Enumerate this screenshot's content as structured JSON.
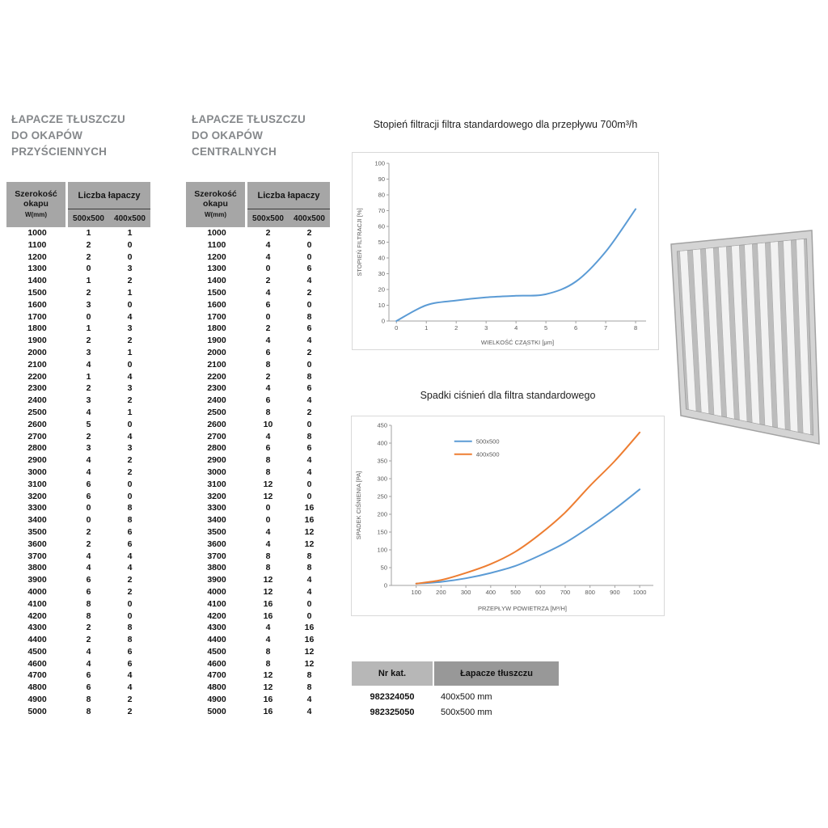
{
  "titles": {
    "wall": [
      "ŁAPACZE TŁUSZCZU",
      "DO OKAPÓW",
      "PRZYŚCIENNYCH"
    ],
    "central": [
      "ŁAPACZE TŁUSZCZU",
      "DO OKAPÓW",
      "CENTRALNYCH"
    ]
  },
  "spec_header": {
    "col1": [
      "Szerokość",
      "okapu"
    ],
    "col1_sub": "W(mm)",
    "group": "Liczba łapaczy",
    "sub": [
      "500x500",
      "400x500"
    ]
  },
  "tables": {
    "wall_rows": [
      [
        1000,
        1,
        1
      ],
      [
        1100,
        2,
        0
      ],
      [
        1200,
        2,
        0
      ],
      [
        1300,
        0,
        3
      ],
      [
        1400,
        1,
        2
      ],
      [
        1500,
        2,
        1
      ],
      [
        1600,
        3,
        0
      ],
      [
        1700,
        0,
        4
      ],
      [
        1800,
        1,
        3
      ],
      [
        1900,
        2,
        2
      ],
      [
        2000,
        3,
        1
      ],
      [
        2100,
        4,
        0
      ],
      [
        2200,
        1,
        4
      ],
      [
        2300,
        2,
        3
      ],
      [
        2400,
        3,
        2
      ],
      [
        2500,
        4,
        1
      ],
      [
        2600,
        5,
        0
      ],
      [
        2700,
        2,
        4
      ],
      [
        2800,
        3,
        3
      ],
      [
        2900,
        4,
        2
      ],
      [
        3000,
        4,
        2
      ],
      [
        3100,
        6,
        0
      ],
      [
        3200,
        6,
        0
      ],
      [
        3300,
        0,
        8
      ],
      [
        3400,
        0,
        8
      ],
      [
        3500,
        2,
        6
      ],
      [
        3600,
        2,
        6
      ],
      [
        3700,
        4,
        4
      ],
      [
        3800,
        4,
        4
      ],
      [
        3900,
        6,
        2
      ],
      [
        4000,
        6,
        2
      ],
      [
        4100,
        8,
        0
      ],
      [
        4200,
        8,
        0
      ],
      [
        4300,
        2,
        8
      ],
      [
        4400,
        2,
        8
      ],
      [
        4500,
        4,
        6
      ],
      [
        4600,
        4,
        6
      ],
      [
        4700,
        6,
        4
      ],
      [
        4800,
        6,
        4
      ],
      [
        4900,
        8,
        2
      ],
      [
        5000,
        8,
        2
      ]
    ],
    "central_rows": [
      [
        1000,
        2,
        2
      ],
      [
        1100,
        4,
        0
      ],
      [
        1200,
        4,
        0
      ],
      [
        1300,
        0,
        6
      ],
      [
        1400,
        2,
        4
      ],
      [
        1500,
        4,
        2
      ],
      [
        1600,
        6,
        0
      ],
      [
        1700,
        0,
        8
      ],
      [
        1800,
        2,
        6
      ],
      [
        1900,
        4,
        4
      ],
      [
        2000,
        6,
        2
      ],
      [
        2100,
        8,
        0
      ],
      [
        2200,
        2,
        8
      ],
      [
        2300,
        4,
        6
      ],
      [
        2400,
        6,
        4
      ],
      [
        2500,
        8,
        2
      ],
      [
        2600,
        10,
        0
      ],
      [
        2700,
        4,
        8
      ],
      [
        2800,
        6,
        6
      ],
      [
        2900,
        8,
        4
      ],
      [
        3000,
        8,
        4
      ],
      [
        3100,
        12,
        0
      ],
      [
        3200,
        12,
        0
      ],
      [
        3300,
        0,
        16
      ],
      [
        3400,
        0,
        16
      ],
      [
        3500,
        4,
        12
      ],
      [
        3600,
        4,
        12
      ],
      [
        3700,
        8,
        8
      ],
      [
        3800,
        8,
        8
      ],
      [
        3900,
        12,
        4
      ],
      [
        4000,
        12,
        4
      ],
      [
        4100,
        16,
        0
      ],
      [
        4200,
        16,
        0
      ],
      [
        4300,
        4,
        16
      ],
      [
        4400,
        4,
        16
      ],
      [
        4500,
        8,
        12
      ],
      [
        4600,
        8,
        12
      ],
      [
        4700,
        12,
        8
      ],
      [
        4800,
        12,
        8
      ],
      [
        4900,
        16,
        4
      ],
      [
        5000,
        16,
        4
      ]
    ]
  },
  "chart_data": [
    {
      "type": "line",
      "title": "Stopień filtracji filtra standardowego dla przepływu 700m³/h",
      "xlabel": "WIELKOŚĆ CZĄSTKI [μm]",
      "ylabel": "STOPIEŃ FILTRACJI [%]",
      "x": [
        0,
        1,
        2,
        3,
        4,
        5,
        6,
        7,
        8
      ],
      "values": [
        0,
        10,
        13,
        15,
        16,
        17,
        25,
        44,
        71
      ],
      "line_color": "#5b9bd5",
      "xlim": [
        0,
        8
      ],
      "ylim": [
        0,
        100
      ],
      "yticks": [
        0,
        10,
        20,
        30,
        40,
        50,
        60,
        70,
        80,
        90,
        100
      ],
      "grid": false,
      "legend": null
    },
    {
      "type": "line",
      "title": "Spadki ciśnień dla filtra standardowego",
      "xlabel": "PRZEPŁYW POWIETRZA [M³/H]",
      "ylabel": "SPADEK CIŚNIENIA [PA]",
      "x": [
        100,
        200,
        300,
        400,
        500,
        600,
        700,
        800,
        900,
        1000
      ],
      "series": [
        {
          "name": "500x500",
          "color": "#5b9bd5",
          "values": [
            5,
            10,
            20,
            35,
            55,
            85,
            120,
            165,
            215,
            270
          ]
        },
        {
          "name": "400x500",
          "color": "#ed7d31",
          "values": [
            5,
            15,
            35,
            60,
            95,
            145,
            205,
            280,
            350,
            430
          ]
        }
      ],
      "xlim": [
        100,
        1000
      ],
      "ylim": [
        0,
        450
      ],
      "yticks": [
        0,
        50,
        100,
        150,
        200,
        250,
        300,
        350,
        400,
        450
      ],
      "grid": false,
      "legend_position": "top-center"
    }
  ],
  "catalog_table": {
    "headers": [
      "Nr kat.",
      "Łapacze tłuszczu"
    ],
    "rows": [
      [
        "982324050",
        "400x500 mm"
      ],
      [
        "982325050",
        "500x500 mm"
      ]
    ]
  },
  "colors": {
    "series_blue": "#5b9bd5",
    "series_orange": "#ed7d31",
    "table_header_gray": "#a6a6a6"
  }
}
